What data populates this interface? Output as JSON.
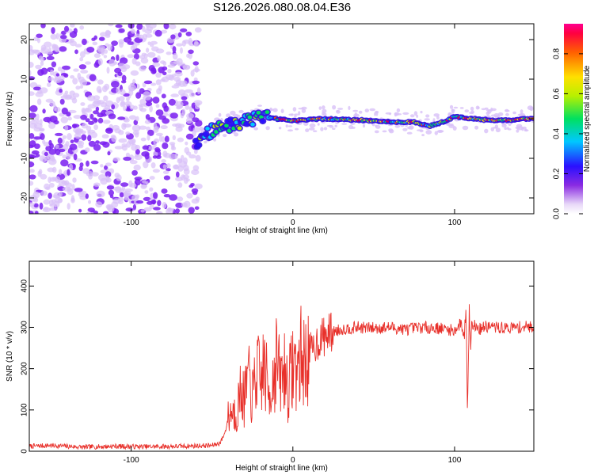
{
  "title": "S126.2026.080.08.04.E36",
  "colors": {
    "snr_line": "#e8302a",
    "axis": "#000000",
    "scatter": "#7a1ff0",
    "scatter_light": "#d8c0f8"
  },
  "chart_data": [
    {
      "id": "spectrogram",
      "type": "heatmap",
      "xlabel": "Height of straight line (km)",
      "ylabel": "Frequency (Hz)",
      "xlim": [
        -163,
        149
      ],
      "ylim": [
        -24,
        24
      ],
      "xticks": [
        -100,
        0,
        100
      ],
      "xtick_labels": [
        "-100",
        "0",
        "100"
      ],
      "yticks": [
        -20,
        -10,
        0,
        10,
        20
      ],
      "ytick_labels": [
        "-20",
        "-10",
        "0",
        "10",
        "20"
      ],
      "noise_region_x": [
        -163,
        -58
      ],
      "signal_track": {
        "x": [
          -60,
          -52,
          -45,
          -38,
          -32,
          -25,
          -18,
          -10,
          0,
          20,
          40,
          60,
          75,
          85,
          95,
          100,
          110,
          125,
          149
        ],
        "y": [
          -6,
          -3.5,
          -2,
          -1.5,
          -0.8,
          0,
          0.5,
          0,
          -0.5,
          0,
          -0.3,
          -0.8,
          -0.8,
          -1.8,
          -0.5,
          0.5,
          0,
          -0.5,
          0
        ]
      },
      "colorbar": {
        "label": "Normalized spectral amplitude",
        "range": [
          0.0,
          0.95
        ],
        "ticks": [
          0.0,
          0.2,
          0.4,
          0.6,
          0.8
        ],
        "tick_labels": [
          "0.0",
          "0.2",
          "0.4",
          "0.6",
          "0.8"
        ]
      }
    },
    {
      "id": "snr",
      "type": "line",
      "xlabel": "Height of straight line (km)",
      "ylabel": "SNR (10 * v/v)",
      "xlim": [
        -163,
        149
      ],
      "ylim": [
        0,
        460
      ],
      "xticks": [
        -100,
        0,
        100
      ],
      "xtick_labels": [
        "-100",
        "0",
        "100"
      ],
      "yticks": [
        0,
        100,
        200,
        300,
        400
      ],
      "ytick_labels": [
        "0",
        "100",
        "200",
        "300",
        "400"
      ],
      "series": [
        {
          "name": "SNR",
          "x": [
            -163,
            -150,
            -130,
            -110,
            -90,
            -70,
            -50,
            -45,
            -42,
            -40,
            -38,
            -35,
            -32,
            -30,
            -28,
            -25,
            -22,
            -20,
            -18,
            -15,
            -12,
            -10,
            -8,
            -5,
            -3,
            0,
            3,
            5,
            8,
            10,
            12,
            15,
            18,
            20,
            25,
            30,
            40,
            50,
            60,
            70,
            80,
            90,
            100,
            104,
            106,
            107,
            108,
            109,
            110,
            112,
            115,
            120,
            130,
            140,
            149
          ],
          "y": [
            12,
            14,
            10,
            12,
            11,
            12,
            14,
            20,
            45,
            80,
            100,
            90,
            150,
            120,
            180,
            130,
            200,
            160,
            210,
            140,
            180,
            230,
            170,
            200,
            150,
            210,
            200,
            230,
            215,
            250,
            240,
            265,
            275,
            280,
            290,
            295,
            300,
            298,
            300,
            295,
            300,
            298,
            292,
            310,
            280,
            380,
            140,
            330,
            300,
            305,
            295,
            302,
            298,
            300,
            302
          ]
        }
      ]
    }
  ]
}
